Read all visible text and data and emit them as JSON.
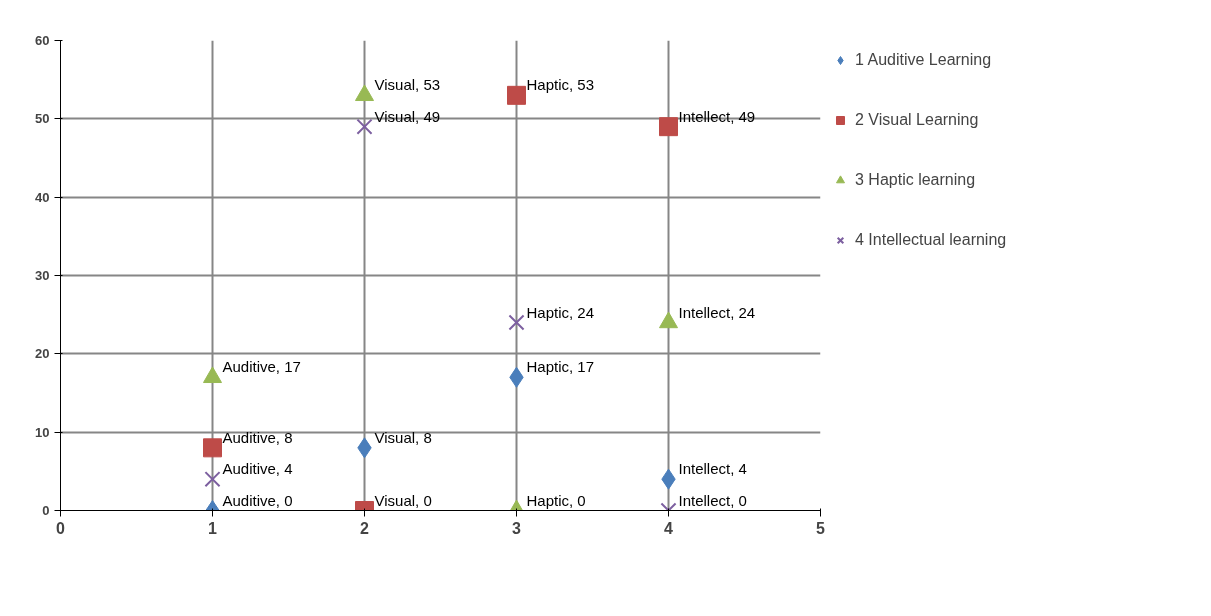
{
  "chart_data": {
    "type": "scatter",
    "x": [
      1,
      2,
      3,
      4
    ],
    "xlim": [
      0,
      5
    ],
    "xticks": [
      0,
      1,
      2,
      3,
      4,
      5
    ],
    "ylim": [
      0,
      60
    ],
    "yticks": [
      0,
      10,
      20,
      30,
      40,
      50,
      60
    ],
    "grid": true,
    "legend": "right",
    "series": [
      {
        "name": "1 Auditive Learning",
        "color": "#4a7ebb",
        "marker": "diamond",
        "values": [
          0,
          8,
          17,
          4
        ],
        "value_labels": [
          "Auditive, 0",
          "Visual, 8",
          "Haptic, 17",
          "Intellect, 4"
        ]
      },
      {
        "name": "2 Visual Learning",
        "color": "#be4b48",
        "marker": "square",
        "values": [
          8,
          0,
          53,
          49
        ],
        "value_labels": [
          "Auditive, 8",
          "Visual, 0",
          "Haptic, 53",
          "Intellect, 49"
        ]
      },
      {
        "name": "3 Haptic learning",
        "color": "#98b954",
        "marker": "triangle",
        "values": [
          17,
          53,
          0,
          24
        ],
        "value_labels": [
          "Auditive, 17",
          "Visual, 53",
          "Haptic, 0",
          "Intellect, 24"
        ]
      },
      {
        "name": "4 Intellectual learning",
        "color": "#7d60a0",
        "marker": "cross",
        "values": [
          4,
          49,
          24,
          0
        ],
        "value_labels": [
          "Auditive, 4",
          "Visual, 49",
          "Haptic, 24",
          "Intellect, 0"
        ]
      }
    ]
  }
}
